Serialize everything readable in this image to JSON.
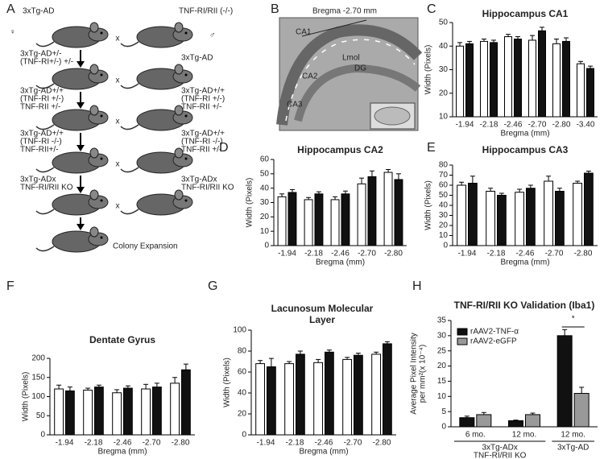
{
  "panel_labels": [
    "A",
    "B",
    "C",
    "D",
    "E",
    "F",
    "G",
    "H"
  ],
  "breeding": {
    "rows": [
      {
        "left": [
          "3xTg-AD"
        ],
        "right": [
          "TNF-RI/RII (-/-)"
        ]
      },
      {
        "left": [
          "3xTg-AD+/-",
          "(TNF-RI+/-) +/-"
        ],
        "right": [
          "3xTg-AD"
        ]
      },
      {
        "left": [
          "3xTg-AD+/+",
          "(TNF-RI +/-)",
          "TNF-RII +/-"
        ],
        "right": [
          "3xTg-AD+/+",
          "(TNF-RI +/-)",
          "TNF-RII +/-"
        ]
      },
      {
        "left": [
          "3xTg-AD+/+",
          "(TNF-RI -/-)",
          "TNF-RII+/-"
        ],
        "right": [
          "3xTg-AD+/+",
          "(TNF-RI -/-)",
          "TNF-RII +/-"
        ]
      },
      {
        "left": [
          "3xTg-ADx",
          "TNF-RI/RII KO"
        ],
        "right": [
          "3xTg-ADx",
          "TNF-RI/RII KO"
        ]
      }
    ],
    "cross": "x",
    "female": "♀",
    "male": "♂",
    "final": "Colony Expansion"
  },
  "histology": {
    "title": "Bregma -2.70 mm",
    "regions": [
      "CA1",
      "Lmol",
      "CA2",
      "DG",
      "CA3"
    ]
  },
  "chart_data": [
    {
      "type": "bar",
      "title": "Hippocampus CA1",
      "xlabel": "Bregma (mm)",
      "ylabel": "Width (Pixels)",
      "categories": [
        "-1.94",
        "-2.18",
        "-2.46",
        "-2.70",
        "-2.80",
        "-3.40"
      ],
      "series": [
        {
          "color": "#ffffff",
          "values": [
            40,
            42,
            44,
            42.5,
            41,
            32.5
          ],
          "errors": [
            1.5,
            1,
            1,
            2,
            2,
            1
          ]
        },
        {
          "color": "#111111",
          "values": [
            41,
            41.5,
            43,
            46.5,
            42,
            30.5
          ],
          "errors": [
            1,
            1,
            1,
            1.5,
            1.5,
            1
          ]
        }
      ],
      "ylim": [
        10,
        50
      ],
      "yticks": [
        10,
        20,
        30,
        40,
        50
      ]
    },
    {
      "type": "bar",
      "title": "Hippocampus CA2",
      "xlabel": "Bregma (mm)",
      "ylabel": "Width (Pixels)",
      "categories": [
        "-1.94",
        "-2.18",
        "-2.46",
        "-2.70",
        "-2.80"
      ],
      "series": [
        {
          "color": "#ffffff",
          "values": [
            34,
            32,
            32,
            43,
            51
          ],
          "errors": [
            2,
            1.5,
            2,
            4,
            2
          ]
        },
        {
          "color": "#111111",
          "values": [
            37,
            36,
            36,
            48,
            46
          ],
          "errors": [
            2,
            1.5,
            2,
            4,
            4
          ]
        }
      ],
      "ylim": [
        0,
        60
      ],
      "yticks": [
        0,
        10,
        20,
        30,
        40,
        50,
        60
      ]
    },
    {
      "type": "bar",
      "title": "Hippocampus CA3",
      "xlabel": "Bregma (mm)",
      "ylabel": "Width (Pixels)",
      "categories": [
        "-1.94",
        "-2.18",
        "-2.46",
        "-2.70",
        "-2.80"
      ],
      "series": [
        {
          "color": "#ffffff",
          "values": [
            60,
            54,
            53,
            64,
            62
          ],
          "errors": [
            3,
            3,
            3,
            5,
            2
          ]
        },
        {
          "color": "#111111",
          "values": [
            62,
            50,
            57,
            54,
            72
          ],
          "errors": [
            7,
            2,
            3,
            3,
            2
          ]
        }
      ],
      "ylim": [
        0,
        80
      ],
      "yticks": [
        0,
        10,
        20,
        30,
        40,
        50,
        60,
        70,
        80
      ]
    },
    {
      "type": "bar",
      "title": "Dentate Gyrus",
      "xlabel": "Bregma (mm)",
      "ylabel": "Width (Pixels)",
      "categories": [
        "-1.94",
        "-2.18",
        "-2.46",
        "-2.70",
        "-2.80"
      ],
      "series": [
        {
          "color": "#ffffff",
          "values": [
            120,
            117,
            110,
            120,
            135
          ],
          "errors": [
            10,
            5,
            8,
            12,
            15
          ]
        },
        {
          "color": "#111111",
          "values": [
            115,
            125,
            122,
            125,
            170
          ],
          "errors": [
            10,
            5,
            6,
            10,
            15
          ]
        }
      ],
      "ylim": [
        0,
        200
      ],
      "yticks": [
        0,
        50,
        100,
        150,
        200
      ]
    },
    {
      "type": "bar",
      "title": "Lacunosum Molecular Layer",
      "xlabel": "Bregma (mm)",
      "ylabel": "Width (Pixels)",
      "categories": [
        "-1.94",
        "-2.18",
        "-2.46",
        "-2.70",
        "-2.80"
      ],
      "series": [
        {
          "color": "#ffffff",
          "values": [
            68,
            68,
            69,
            72,
            77
          ],
          "errors": [
            3,
            2,
            3,
            2,
            2
          ]
        },
        {
          "color": "#111111",
          "values": [
            65,
            77,
            79,
            76,
            87
          ],
          "errors": [
            8,
            3,
            2,
            2,
            2
          ]
        }
      ],
      "ylim": [
        0,
        100
      ],
      "yticks": [
        0,
        20,
        40,
        60,
        80,
        100
      ]
    },
    {
      "type": "grouped-bar",
      "title": "TNF-RI/RII KO Validation (Iba1)",
      "ylabel": [
        "Average Pixel Intensity",
        "per mm²(x 10⁻⁴)"
      ],
      "groups": [
        {
          "lines": [
            "3xTg-ADx",
            "TNF-RI/RII KO"
          ],
          "categories": [
            "6 mo.",
            "12 mo."
          ]
        },
        {
          "lines": [
            "3xTg-AD"
          ],
          "categories": [
            "12 mo."
          ]
        }
      ],
      "series": [
        {
          "name": "rAAV2-TNF-α",
          "color": "#111111",
          "values": [
            3,
            2,
            30
          ],
          "errors": [
            0.5,
            0.2,
            2
          ]
        },
        {
          "name": "rAAV2-eGFP",
          "color": "#999999",
          "values": [
            4,
            4,
            11
          ],
          "errors": [
            0.7,
            0.5,
            2
          ]
        }
      ],
      "ylim": [
        0,
        35
      ],
      "yticks": [
        0,
        5,
        10,
        15,
        20,
        25,
        30,
        35
      ],
      "annotation": "*",
      "legend": "upper-left"
    }
  ]
}
